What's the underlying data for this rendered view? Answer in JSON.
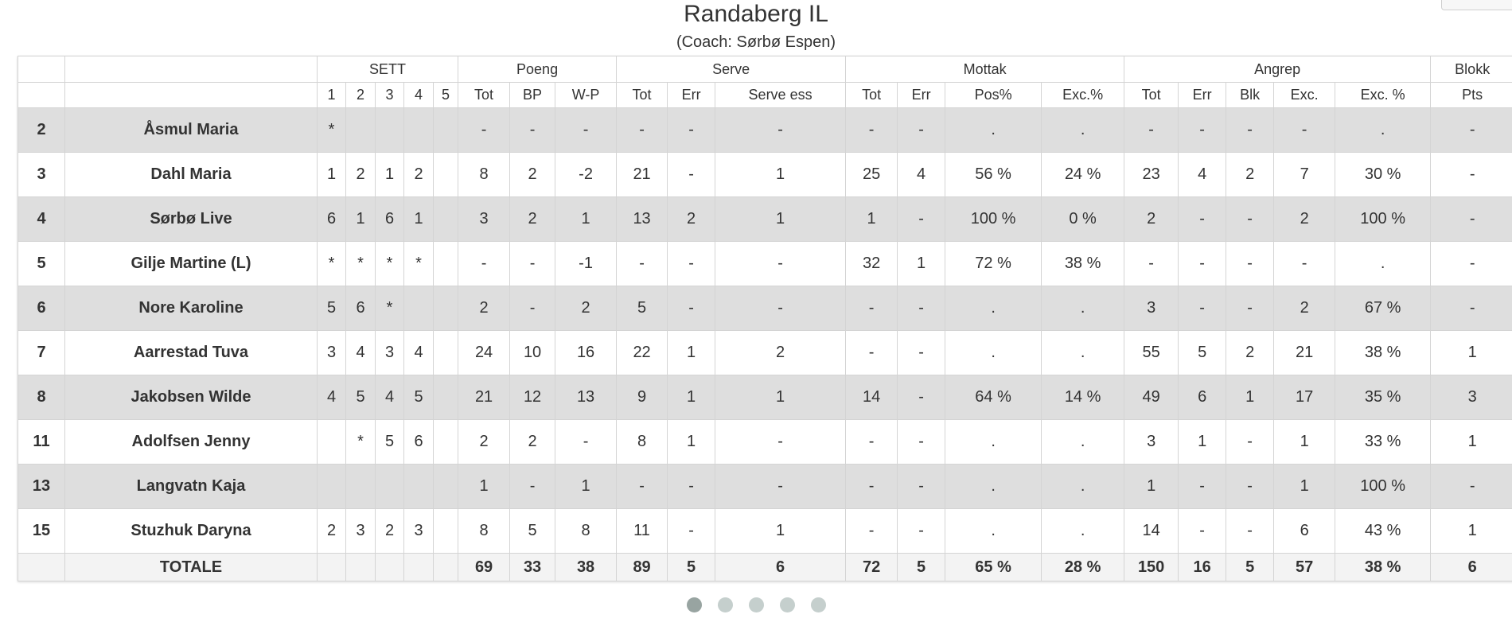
{
  "team": {
    "name": "Randaberg IL",
    "coach": "(Coach: Sørbø Espen)"
  },
  "header_groups": [
    "SETT",
    "Poeng",
    "Serve",
    "Mottak",
    "Angrep",
    "Blokk"
  ],
  "subheaders": [
    "1",
    "2",
    "3",
    "4",
    "5",
    "Tot",
    "BP",
    "W-P",
    "Tot",
    "Err",
    "Serve ess",
    "Tot",
    "Err",
    "Pos%",
    "Exc.%",
    "Tot",
    "Err",
    "Blk",
    "Exc.",
    "Exc. %",
    "Pts"
  ],
  "players": [
    {
      "num": "2",
      "name": "Åsmul Maria",
      "cells": [
        "*",
        "",
        "",
        "",
        "",
        "-",
        "-",
        "-",
        "-",
        "-",
        "-",
        "-",
        "-",
        ".",
        ".",
        "-",
        "-",
        "-",
        "-",
        ".",
        "-"
      ]
    },
    {
      "num": "3",
      "name": "Dahl Maria",
      "cells": [
        "1",
        "2",
        "1",
        "2",
        "",
        "8",
        "2",
        "-2",
        "21",
        "-",
        "1",
        "25",
        "4",
        "56 %",
        "24 %",
        "23",
        "4",
        "2",
        "7",
        "30 %",
        "-"
      ]
    },
    {
      "num": "4",
      "name": "Sørbø Live",
      "cells": [
        "6",
        "1",
        "6",
        "1",
        "",
        "3",
        "2",
        "1",
        "13",
        "2",
        "1",
        "1",
        "-",
        "100 %",
        "0 %",
        "2",
        "-",
        "-",
        "2",
        "100 %",
        "-"
      ]
    },
    {
      "num": "5",
      "name": "Gilje Martine (L)",
      "cells": [
        "*",
        "*",
        "*",
        "*",
        "",
        "-",
        "-",
        "-1",
        "-",
        "-",
        "-",
        "32",
        "1",
        "72 %",
        "38 %",
        "-",
        "-",
        "-",
        "-",
        ".",
        "-"
      ]
    },
    {
      "num": "6",
      "name": "Nore Karoline",
      "cells": [
        "5",
        "6",
        "*",
        "",
        "",
        "2",
        "-",
        "2",
        "5",
        "-",
        "-",
        "-",
        "-",
        ".",
        ".",
        "3",
        "-",
        "-",
        "2",
        "67 %",
        "-"
      ]
    },
    {
      "num": "7",
      "name": "Aarrestad Tuva",
      "cells": [
        "3",
        "4",
        "3",
        "4",
        "",
        "24",
        "10",
        "16",
        "22",
        "1",
        "2",
        "-",
        "-",
        ".",
        ".",
        "55",
        "5",
        "2",
        "21",
        "38 %",
        "1"
      ]
    },
    {
      "num": "8",
      "name": "Jakobsen Wilde",
      "cells": [
        "4",
        "5",
        "4",
        "5",
        "",
        "21",
        "12",
        "13",
        "9",
        "1",
        "1",
        "14",
        "-",
        "64 %",
        "14 %",
        "49",
        "6",
        "1",
        "17",
        "35 %",
        "3"
      ]
    },
    {
      "num": "11",
      "name": "Adolfsen Jenny",
      "cells": [
        "",
        "*",
        "5",
        "6",
        "",
        "2",
        "2",
        "-",
        "8",
        "1",
        "-",
        "-",
        "-",
        ".",
        ".",
        "3",
        "1",
        "-",
        "1",
        "33 %",
        "1"
      ]
    },
    {
      "num": "13",
      "name": "Langvatn Kaja",
      "cells": [
        "",
        "",
        "",
        "",
        "",
        "1",
        "-",
        "1",
        "-",
        "-",
        "-",
        "-",
        "-",
        ".",
        ".",
        "1",
        "-",
        "-",
        "1",
        "100 %",
        "-"
      ]
    },
    {
      "num": "15",
      "name": "Stuzhuk Daryna",
      "cells": [
        "2",
        "3",
        "2",
        "3",
        "",
        "8",
        "5",
        "8",
        "11",
        "-",
        "1",
        "-",
        "-",
        ".",
        ".",
        "14",
        "-",
        "-",
        "6",
        "43 %",
        "1"
      ]
    }
  ],
  "totals": {
    "label": "TOTALE",
    "cells": [
      "",
      "",
      "",
      "",
      "",
      "69",
      "33",
      "38",
      "89",
      "5",
      "6",
      "72",
      "5",
      "65 %",
      "28 %",
      "150",
      "16",
      "5",
      "57",
      "38 %",
      "6"
    ]
  },
  "pagination": {
    "pages": 5,
    "active": 1
  }
}
